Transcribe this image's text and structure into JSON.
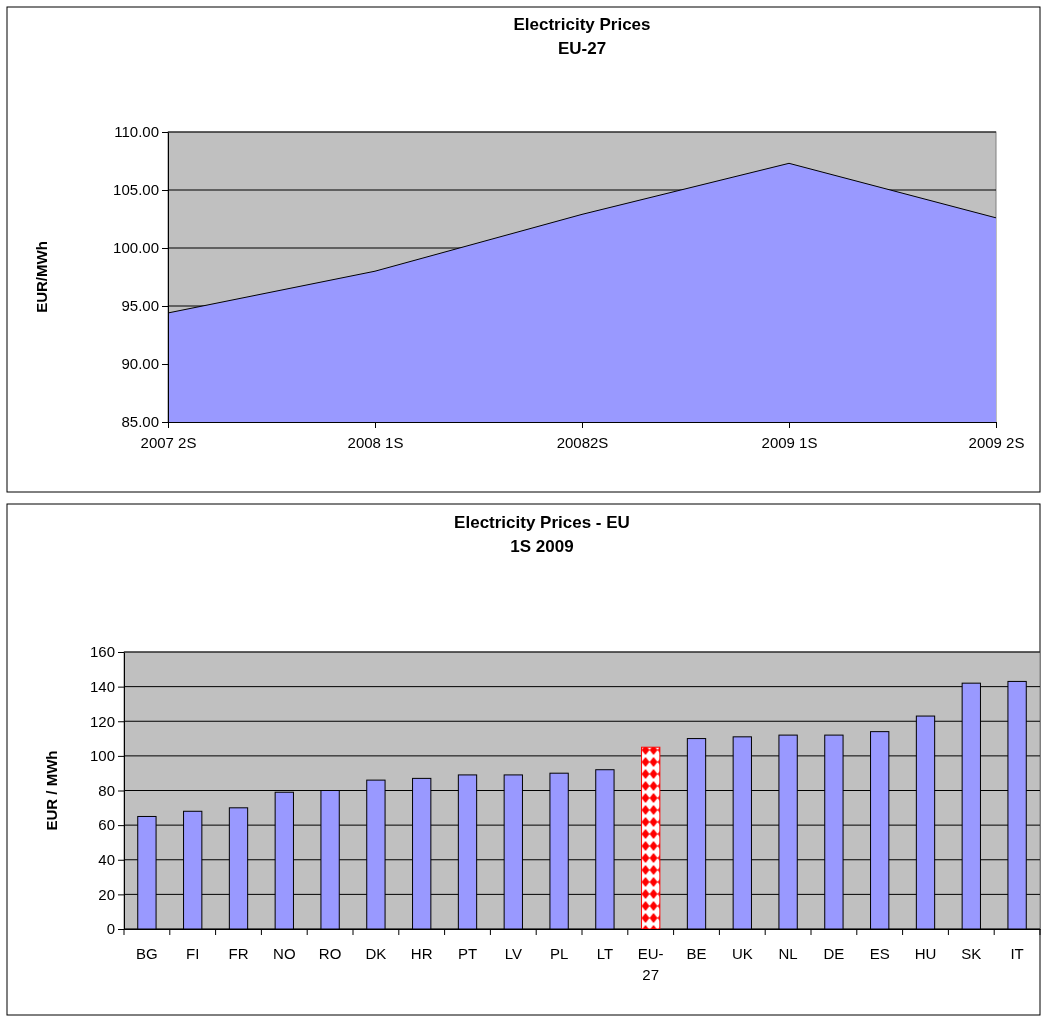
{
  "chart_data": [
    {
      "type": "area",
      "title": "Electricity Prices\nEU-27",
      "ylabel": "EUR/MWh",
      "categories": [
        "2007 2S",
        "2008 1S",
        "20082S",
        "2009 1S",
        "2009 2S"
      ],
      "series": [
        {
          "color": "#9999ff",
          "values": [
            94.4,
            98.0,
            102.9,
            107.3,
            102.6
          ]
        }
      ],
      "ylim": [
        85,
        110
      ],
      "yticks": [
        {
          "value": 85,
          "label": "85.00"
        },
        {
          "value": 90,
          "label": "90.00"
        },
        {
          "value": 95,
          "label": "95.00"
        },
        {
          "value": 100,
          "label": "100.00"
        },
        {
          "value": 105,
          "label": "105.00"
        },
        {
          "value": 110,
          "label": "110.00"
        }
      ],
      "grid": "y"
    },
    {
      "type": "bar",
      "title": "Electricity Prices - EU\n1S 2009",
      "ylabel": "EUR / MWh",
      "categories": [
        "BG",
        "FI",
        "FR",
        "NO",
        "RO",
        "DK",
        "HR",
        "PT",
        "LV",
        "PL",
        "LT",
        "EU-27",
        "BE",
        "UK",
        "NL",
        "DE",
        "ES",
        "HU",
        "SK",
        "IT"
      ],
      "values": [
        65,
        68,
        70,
        79,
        80,
        86,
        87,
        89,
        89,
        90,
        92,
        105,
        110,
        111,
        112,
        112,
        114,
        123,
        142,
        143
      ],
      "colors": [
        "#9999ff",
        "#9999ff",
        "#9999ff",
        "#9999ff",
        "#9999ff",
        "#9999ff",
        "#9999ff",
        "#9999ff",
        "#9999ff",
        "#9999ff",
        "#9999ff",
        "#ff0000",
        "#9999ff",
        "#9999ff",
        "#9999ff",
        "#9999ff",
        "#9999ff",
        "#9999ff",
        "#9999ff",
        "#9999ff"
      ],
      "ylim": [
        0,
        160
      ],
      "yticks": [
        0,
        20,
        40,
        60,
        80,
        100,
        120,
        140,
        160
      ],
      "grid": "y"
    }
  ]
}
